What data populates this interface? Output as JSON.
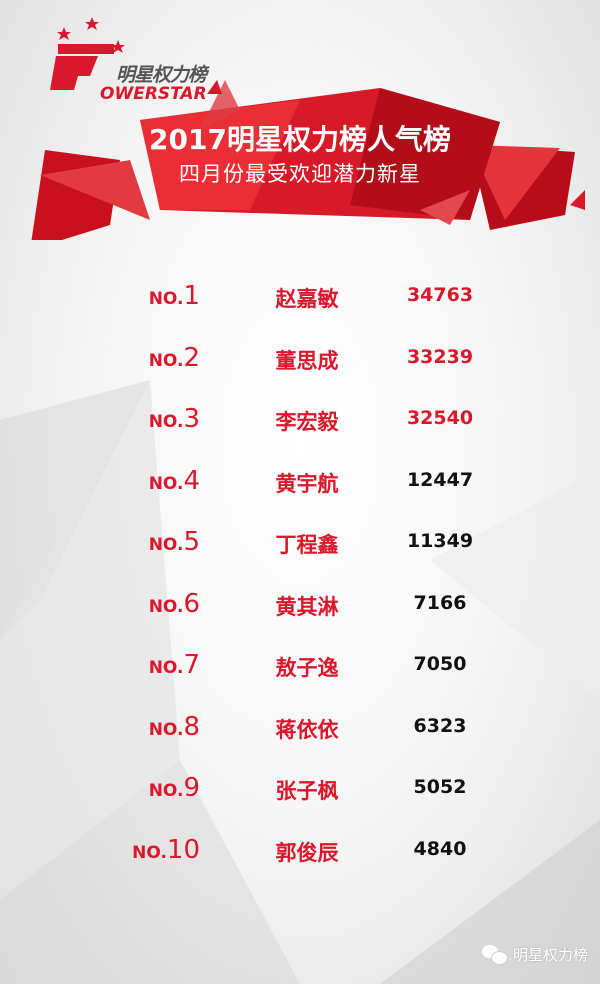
{
  "logo": {
    "cn": "明星权力榜",
    "en": "OWERSTAR"
  },
  "header": {
    "title": "2017明星权力榜人气榜",
    "subtitle": "四月份最受欢迎潜力新星"
  },
  "colors": {
    "accent": "#d9182b",
    "text_dark": "#111111"
  },
  "ranking": [
    {
      "prefix": "NO.",
      "rank": "1",
      "name": "赵嘉敏",
      "votes": "34763",
      "highlight": true
    },
    {
      "prefix": "NO.",
      "rank": "2",
      "name": "董思成",
      "votes": "33239",
      "highlight": true
    },
    {
      "prefix": "NO.",
      "rank": "3",
      "name": "李宏毅",
      "votes": "32540",
      "highlight": true
    },
    {
      "prefix": "NO.",
      "rank": "4",
      "name": "黄宇航",
      "votes": "12447",
      "highlight": false
    },
    {
      "prefix": "NO.",
      "rank": "5",
      "name": "丁程鑫",
      "votes": "11349",
      "highlight": false
    },
    {
      "prefix": "NO.",
      "rank": "6",
      "name": "黄其淋",
      "votes": "7166",
      "highlight": false
    },
    {
      "prefix": "NO.",
      "rank": "7",
      "name": "敖子逸",
      "votes": "7050",
      "highlight": false
    },
    {
      "prefix": "NO.",
      "rank": "8",
      "name": "蒋依依",
      "votes": "6323",
      "highlight": false
    },
    {
      "prefix": "NO.",
      "rank": "9",
      "name": "张子枫",
      "votes": "5052",
      "highlight": false
    },
    {
      "prefix": "NO.",
      "rank": "10",
      "name": "郭俊辰",
      "votes": "4840",
      "highlight": false
    }
  ],
  "footer": {
    "account": "明星权力榜",
    "icon": "wechat-icon"
  }
}
